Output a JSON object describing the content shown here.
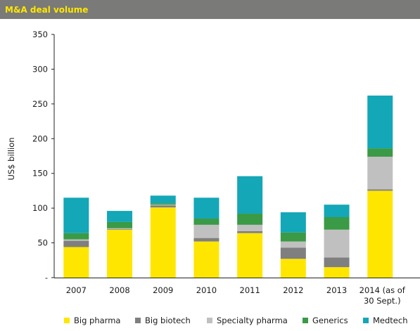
{
  "title": "M&A deal volume",
  "colors": {
    "big_pharma": "#ffe600",
    "big_biotech": "#7f7f7f",
    "specialty_pharma": "#c0c0c0",
    "generics": "#3a9a45",
    "medtech": "#13a7b7",
    "title_bg": "#7a7a78",
    "title_fg": "#ffe600"
  },
  "chart_data": {
    "type": "bar",
    "stacked": true,
    "ylabel": "US$ billion",
    "ylim": [
      0,
      350
    ],
    "yticks": [
      "-",
      "50",
      "100",
      "150",
      "200",
      "250",
      "300",
      "350"
    ],
    "categories": [
      "2007",
      "2008",
      "2009",
      "2010",
      "2011",
      "2012",
      "2013",
      "2014 (as of\n30 Sept.)"
    ],
    "series": [
      {
        "name": "Big pharma",
        "color_key": "big_pharma",
        "values": [
          44,
          69,
          101,
          52,
          64,
          27,
          15,
          125
        ]
      },
      {
        "name": "Big biotech",
        "color_key": "big_biotech",
        "values": [
          9,
          1,
          3,
          5,
          3,
          16,
          14,
          2
        ]
      },
      {
        "name": "Specialty pharma",
        "color_key": "specialty_pharma",
        "values": [
          2,
          1,
          1,
          19,
          9,
          9,
          40,
          47
        ]
      },
      {
        "name": "Generics",
        "color_key": "generics",
        "values": [
          9,
          9,
          2,
          9,
          16,
          13,
          18,
          12
        ]
      },
      {
        "name": "Medtech",
        "color_key": "medtech",
        "values": [
          51,
          16,
          11,
          30,
          54,
          29,
          18,
          76
        ]
      }
    ],
    "grid": false,
    "legend_position": "bottom"
  }
}
